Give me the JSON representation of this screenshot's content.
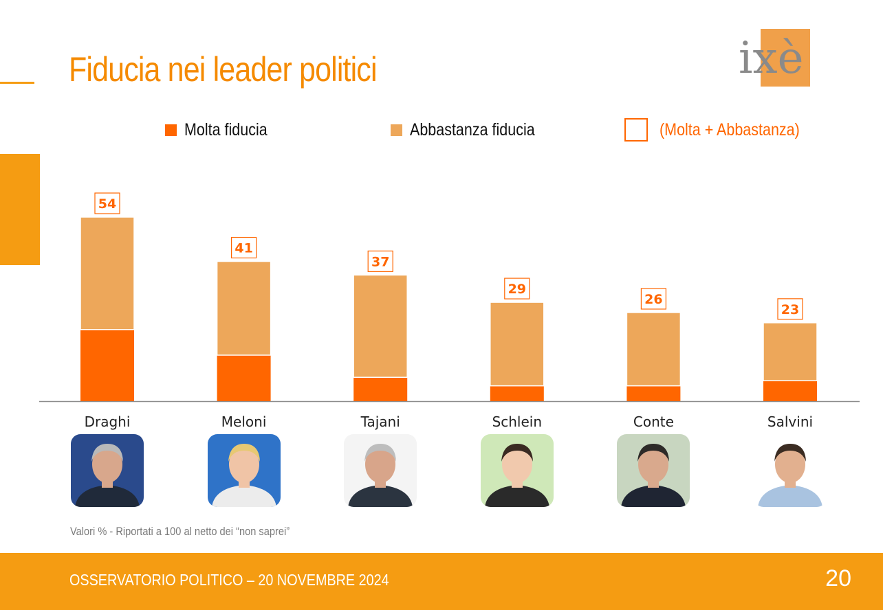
{
  "slide": {
    "title": "Fiducia nei leader politici",
    "footnote": "Valori % - Riportati a 100 al netto dei “non saprei”",
    "footer_text": "OSSERVATORIO POLITICO – 20 NOVEMBRE 2024",
    "page_number": "20"
  },
  "logo": {
    "text": "ixè"
  },
  "colors": {
    "molta": "#ff6600",
    "abbastanza": "#eda75a",
    "accent": "#f59c12",
    "title": "#f58a00",
    "axis": "#8c8c8c"
  },
  "legend": {
    "molta": "Molta fiducia",
    "abbastanza": "Abbastanza fiducia",
    "totale": "(Molta + Abbastanza)"
  },
  "chart_data": {
    "type": "bar",
    "stacked": true,
    "categories": [
      "Draghi",
      "Meloni",
      "Tajani",
      "Schlein",
      "Conte",
      "Salvini"
    ],
    "series": [
      {
        "name": "Molta fiducia",
        "values": [
          21,
          13.5,
          7,
          4.5,
          4.5,
          6
        ]
      },
      {
        "name": "Abbastanza fiducia",
        "values": [
          33,
          27.5,
          30,
          24.5,
          21.5,
          17
        ]
      }
    ],
    "totals_label": "(Molta + Abbastanza)",
    "totals": [
      54,
      41,
      37,
      29,
      26,
      23
    ],
    "ylim": [
      0,
      60
    ],
    "grid": false,
    "legend_position": "top"
  },
  "photos": [
    {
      "name": "draghi",
      "icon": "draghi-photo-icon",
      "bg": "#2a4a8c",
      "skin": "#d8a78c",
      "hair": "#b9b9b9",
      "suit": "#202a3a"
    },
    {
      "name": "meloni",
      "icon": "meloni-photo-icon",
      "bg": "#2f73c8",
      "skin": "#f0c4a6",
      "hair": "#e7c873",
      "suit": "#ececec"
    },
    {
      "name": "tajani",
      "icon": "tajani-photo-icon",
      "bg": "#f4f4f4",
      "skin": "#d8a58a",
      "hair": "#bdbdbd",
      "suit": "#2b3440"
    },
    {
      "name": "schlein",
      "icon": "schlein-photo-icon",
      "bg": "#cfe8b8",
      "skin": "#f1c9ad",
      "hair": "#3a2a22",
      "suit": "#2a2a2a"
    },
    {
      "name": "conte",
      "icon": "conte-photo-icon",
      "bg": "#c8d6c0",
      "skin": "#d9a98d",
      "hair": "#2d2a28",
      "suit": "#1f2533"
    },
    {
      "name": "salvini",
      "icon": "salvini-photo-icon",
      "bg": "#ffffff",
      "skin": "#e2b08f",
      "hair": "#3b2c22",
      "suit": "#a9c3e0"
    }
  ]
}
